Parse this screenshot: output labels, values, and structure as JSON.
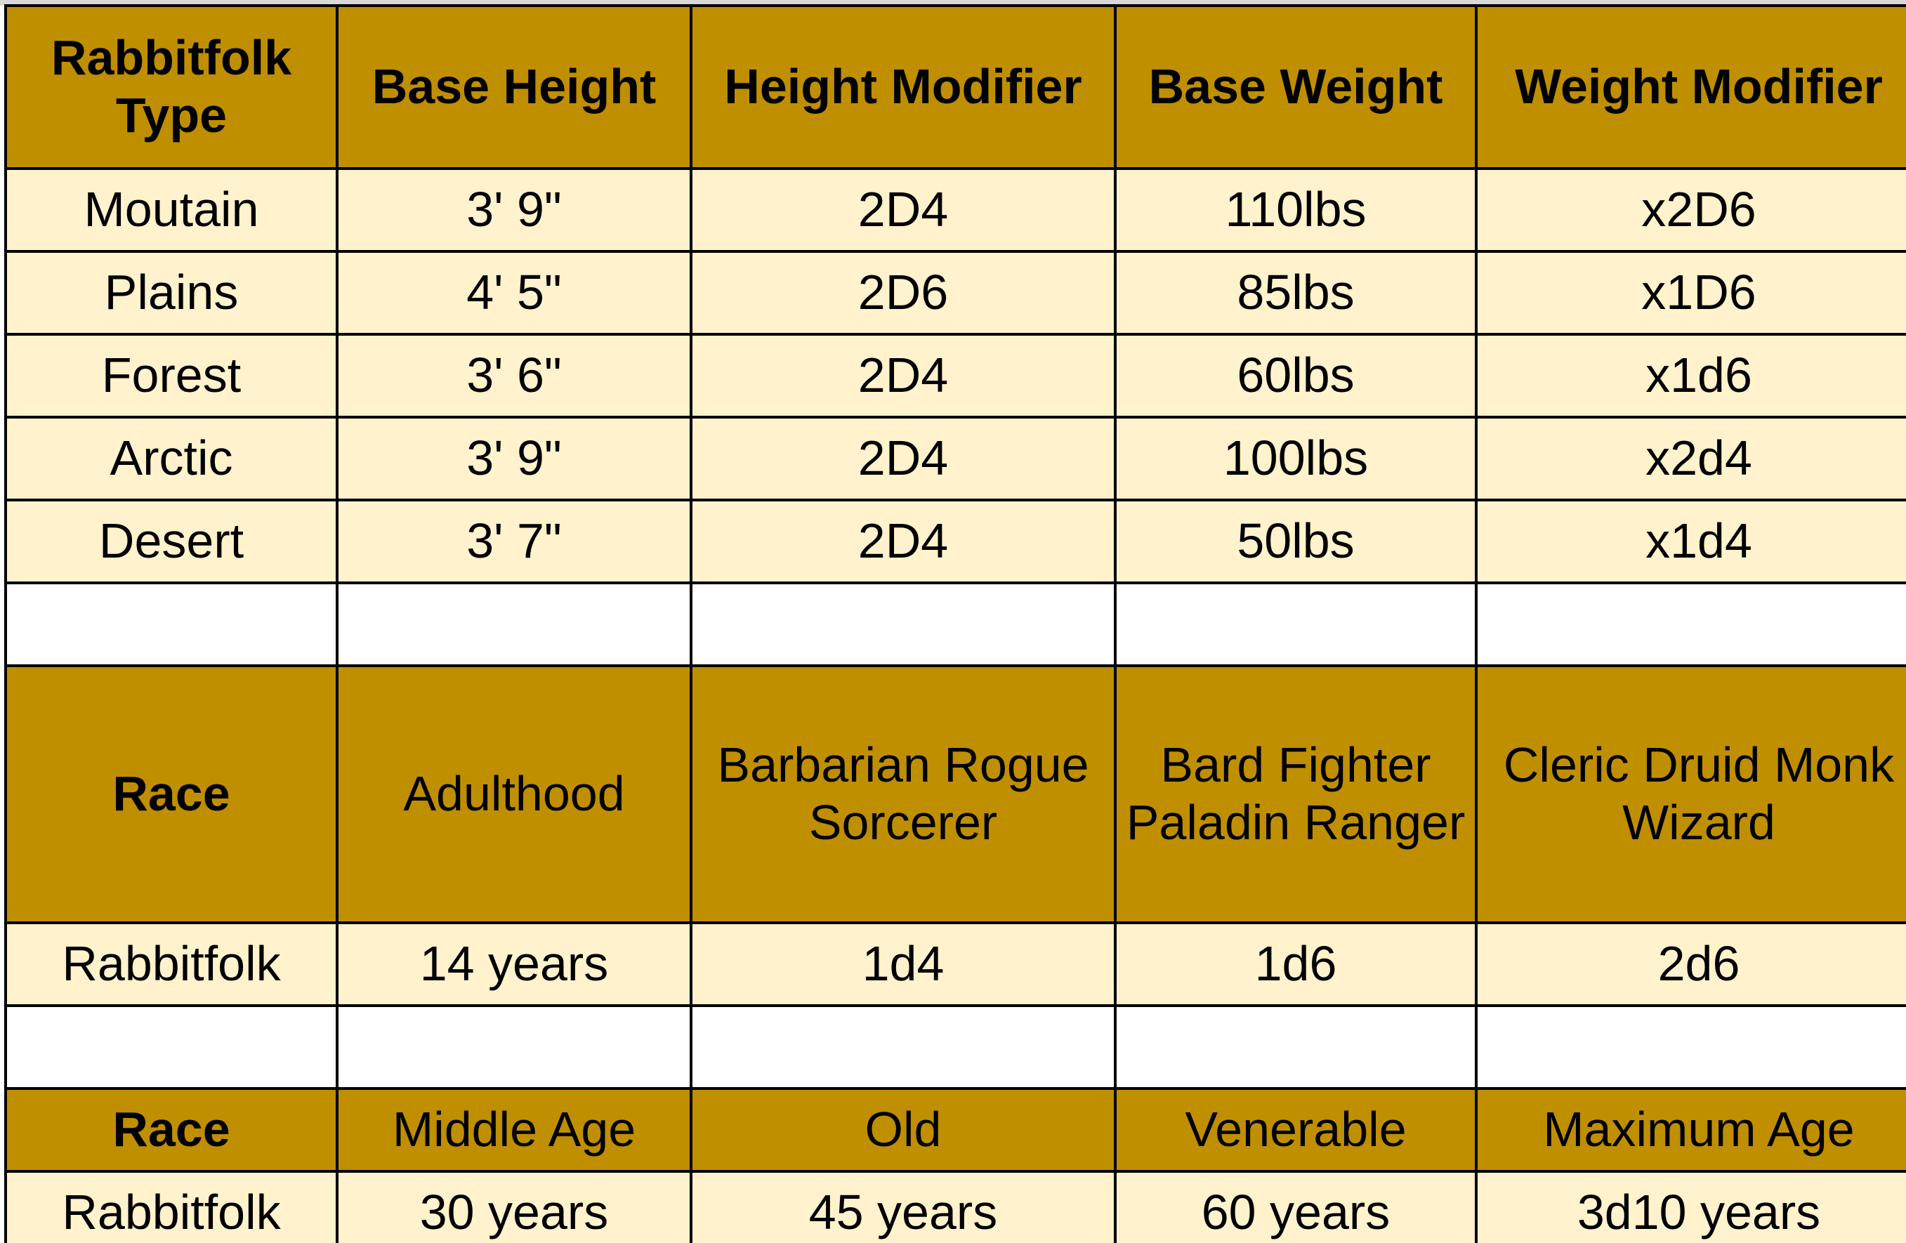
{
  "colors": {
    "header": "#bf8f00",
    "data_row": "#fff2cc",
    "blank_row": "#ffffff",
    "grid": "#000000"
  },
  "table1": {
    "headers": [
      "Rabbitfolk Type",
      "Base Height",
      "Height Modifier",
      "Base Weight",
      "Weight Modifier"
    ],
    "rows": [
      [
        "Moutain",
        "3' 9\"",
        "2D4",
        "110lbs",
        "x2D6"
      ],
      [
        "Plains",
        "4' 5\"",
        "2D6",
        "85lbs",
        "x1D6"
      ],
      [
        "Forest",
        "3' 6\"",
        "2D4",
        "60lbs",
        "x1d6"
      ],
      [
        "Arctic",
        "3' 9\"",
        "2D4",
        "100lbs",
        "x2d4"
      ],
      [
        "Desert",
        "3' 7\"",
        "2D4",
        "50lbs",
        "x1d4"
      ]
    ]
  },
  "table2": {
    "headers": [
      "Race",
      "Adulthood",
      "Barbarian Rogue Sorcerer",
      "Bard Fighter Paladin Ranger",
      "Cleric Druid Monk Wizard"
    ],
    "rows": [
      [
        "Rabbitfolk",
        "14 years",
        "1d4",
        "1d6",
        "2d6"
      ]
    ]
  },
  "table3": {
    "headers": [
      "Race",
      "Middle Age",
      "Old",
      "Venerable",
      "Maximum Age"
    ],
    "rows": [
      [
        "Rabbitfolk",
        "30 years",
        "45 years",
        "60 years",
        "3d10 years"
      ]
    ]
  }
}
